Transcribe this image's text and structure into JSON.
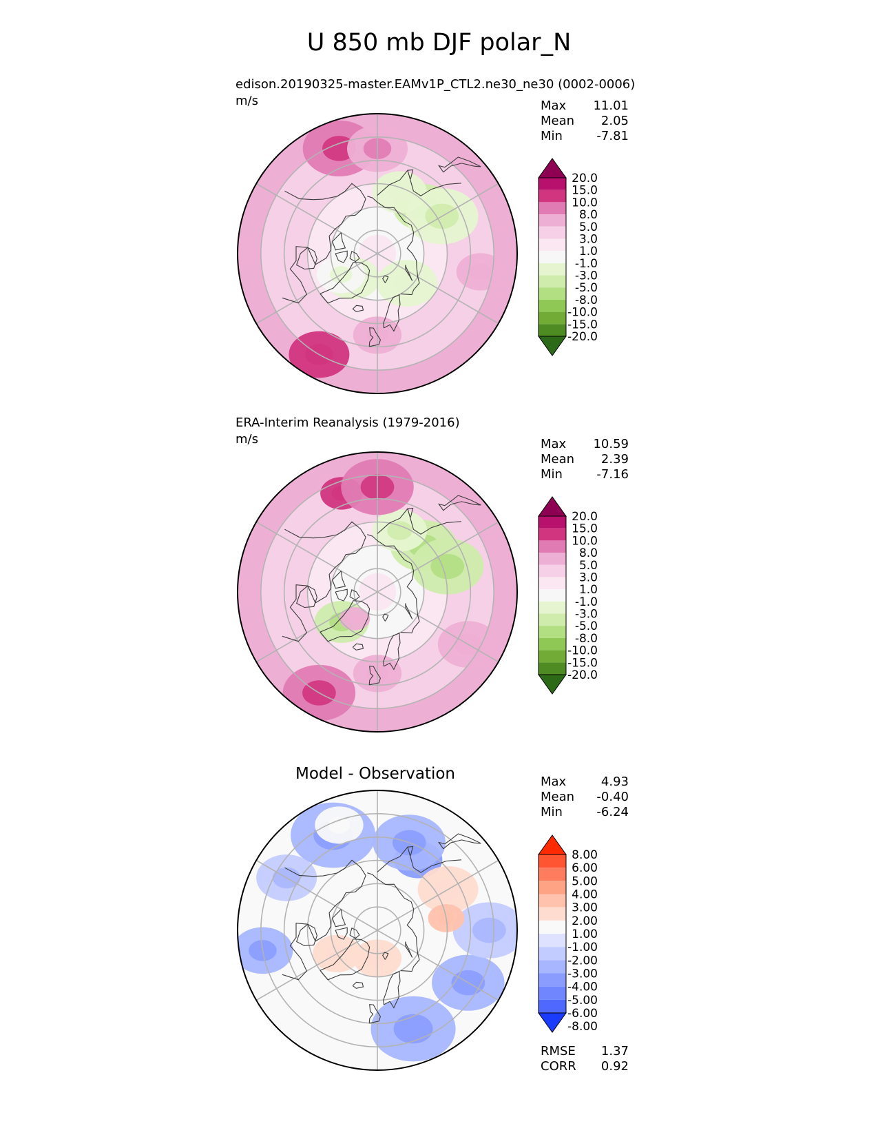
{
  "figure_title": "U 850 mb DJF polar_N",
  "colors": {
    "pink_levels": [
      "#8e0152",
      "#b7116d",
      "#d1357f",
      "#e07bb4",
      "#eeafd4",
      "#f6d0e6",
      "#fbe7f1",
      "#f7f7f7",
      "#e6f5d0",
      "#cfecac",
      "#b3df83",
      "#90c855",
      "#72ac36",
      "#4e8c23",
      "#2d6a18"
    ],
    "diff_levels": [
      "#ff2a00",
      "#ff5533",
      "#ff7d5e",
      "#ffa385",
      "#ffc2ad",
      "#ffdcd0",
      "#f9f9f9",
      "#dee2ff",
      "#c3ccff",
      "#a8b6ff",
      "#8a9dff",
      "#6f86ff",
      "#4f68ff",
      "#1a3cff"
    ],
    "grid": "#b3b3b3",
    "coast": "#3b3b3b"
  },
  "chart_data": [
    {
      "type": "heatmap",
      "projection": "north-polar-stereographic",
      "title": "edison.20190325-master.EAMv1P_CTL2.ne30_ne30 (0002-0006)",
      "units": "m/s",
      "stats": [
        {
          "label": "Max",
          "value": "11.01"
        },
        {
          "label": "Mean",
          "value": "2.05"
        },
        {
          "label": "Min",
          "value": "-7.81"
        }
      ],
      "colorbar_levels": [
        "20.0",
        "15.0",
        "10.0",
        "8.0",
        "5.0",
        "3.0",
        "1.0",
        "-1.0",
        "-3.0",
        "-5.0",
        "-8.0",
        "-10.0",
        "-15.0",
        "-20.0"
      ],
      "colormap": "PiYG",
      "blobs": [
        {
          "lon": 135,
          "lat": 62,
          "value": -4,
          "extent": 10
        },
        {
          "lon": 120,
          "lat": 58,
          "value": -3,
          "extent": 12
        },
        {
          "lon": 160,
          "lat": 62,
          "value": -2,
          "extent": 9
        },
        {
          "lon": 45,
          "lat": 72,
          "value": -2,
          "extent": 10
        },
        {
          "lon": -45,
          "lat": 75,
          "value": -2,
          "extent": 9
        },
        {
          "lon": -60,
          "lat": 72,
          "value": -1,
          "extent": 8
        },
        {
          "lon": -30,
          "lat": 40,
          "value": 10,
          "extent": 10
        },
        {
          "lon": -160,
          "lat": 42,
          "value": 8,
          "extent": 12
        },
        {
          "lon": 180,
          "lat": 45,
          "value": 7,
          "extent": 10
        },
        {
          "lon": 0,
          "lat": 55,
          "value": 6,
          "extent": 8
        },
        {
          "lon": 80,
          "lat": 45,
          "value": 5,
          "extent": 8
        }
      ]
    },
    {
      "type": "heatmap",
      "projection": "north-polar-stereographic",
      "title": "ERA-Interim Reanalysis (1979-2016)",
      "units": "m/s",
      "stats": [
        {
          "label": "Max",
          "value": "10.59"
        },
        {
          "label": "Mean",
          "value": "2.39"
        },
        {
          "label": "Min",
          "value": "-7.16"
        }
      ],
      "colorbar_levels": [
        "20.0",
        "15.0",
        "10.0",
        "8.0",
        "5.0",
        "3.0",
        "1.0",
        "-1.0",
        "-3.0",
        "-5.0",
        "-8.0",
        "-10.0",
        "-15.0",
        "-20.0"
      ],
      "colormap": "PiYG",
      "blobs": [
        {
          "lon": 135,
          "lat": 62,
          "value": -5,
          "extent": 11
        },
        {
          "lon": 110,
          "lat": 58,
          "value": -4,
          "extent": 12
        },
        {
          "lon": 160,
          "lat": 62,
          "value": -3,
          "extent": 9
        },
        {
          "lon": -50,
          "lat": 70,
          "value": -4,
          "extent": 9
        },
        {
          "lon": -40,
          "lat": 75,
          "value": 5,
          "extent": 5
        },
        {
          "lon": -160,
          "lat": 45,
          "value": 10,
          "extent": 7
        },
        {
          "lon": -30,
          "lat": 40,
          "value": 9,
          "extent": 12
        },
        {
          "lon": 180,
          "lat": 45,
          "value": 8,
          "extent": 12
        },
        {
          "lon": 0,
          "lat": 55,
          "value": 6,
          "extent": 8
        },
        {
          "lon": 60,
          "lat": 45,
          "value": 6,
          "extent": 10
        }
      ]
    },
    {
      "type": "heatmap",
      "projection": "north-polar-stereographic",
      "title": "Model - Observation",
      "units": "",
      "stats": [
        {
          "label": "Max",
          "value": "4.93"
        },
        {
          "label": "Mean",
          "value": "-0.40"
        },
        {
          "label": "Min",
          "value": "-6.24"
        }
      ],
      "metrics": [
        {
          "label": "RMSE",
          "value": "1.37"
        },
        {
          "label": "CORR",
          "value": "0.92"
        }
      ],
      "colorbar_levels": [
        "8.00",
        "6.00",
        "5.00",
        "4.00",
        "3.00",
        "2.00",
        "1.00",
        "-1.00",
        "-2.00",
        "-3.00",
        "-4.00",
        "-5.00",
        "-6.00",
        "-8.00"
      ],
      "colormap": "bwr",
      "blobs": [
        {
          "lon": 150,
          "lat": 55,
          "value": -4,
          "extent": 8
        },
        {
          "lon": 160,
          "lat": 50,
          "value": -3,
          "extent": 12
        },
        {
          "lon": -155,
          "lat": 45,
          "value": -3,
          "extent": 14
        },
        {
          "lon": -120,
          "lat": 45,
          "value": -2,
          "extent": 10
        },
        {
          "lon": -80,
          "lat": 40,
          "value": -3,
          "extent": 10
        },
        {
          "lon": 20,
          "lat": 45,
          "value": -3,
          "extent": 14
        },
        {
          "lon": 60,
          "lat": 45,
          "value": -3,
          "extent": 12
        },
        {
          "lon": 90,
          "lat": 42,
          "value": -2,
          "extent": 12
        },
        {
          "lon": 120,
          "lat": 55,
          "value": 2,
          "extent": 10
        },
        {
          "lon": 100,
          "lat": 60,
          "value": 3,
          "extent": 6
        },
        {
          "lon": 0,
          "lat": 78,
          "value": 2,
          "extent": 8
        },
        {
          "lon": -60,
          "lat": 70,
          "value": 2,
          "extent": 8
        },
        {
          "lon": -160,
          "lat": 42,
          "value": 1.5,
          "extent": 8
        }
      ]
    }
  ]
}
